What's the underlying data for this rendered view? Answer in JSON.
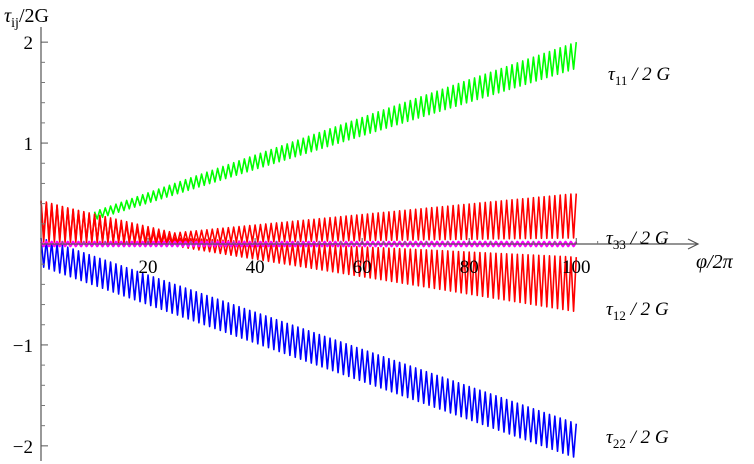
{
  "chart_data": {
    "type": "line",
    "title": "",
    "ylabel": "τ_ij/2G",
    "xlabel": "φ/2π",
    "xlim": [
      0,
      122
    ],
    "ylim": [
      -2.15,
      2.15
    ],
    "x_ticks": [
      20,
      40,
      60,
      80,
      100
    ],
    "y_ticks": [
      -2,
      -1,
      1,
      2
    ],
    "x_ticks_labels": [
      "20",
      "40",
      "60",
      "80",
      "100"
    ],
    "y_ticks_labels": [
      "−2",
      "−1",
      "1",
      "2"
    ],
    "grid": false,
    "legend": "none",
    "series": [
      {
        "name": "τ11 / 2 G",
        "color": "#00ff00",
        "x": [
          10,
          100
        ],
        "center": [
          0.28,
          1.87
        ],
        "oscillation_amplitude": [
          0.04,
          0.13
        ]
      },
      {
        "name": "τ33 / 2 G",
        "color": "#ff0000",
        "x": [
          0,
          25,
          100
        ],
        "center": [
          0.22,
          0.06,
          0.28
        ],
        "oscillation_amplitude": [
          0.2,
          0.05,
          0.22
        ]
      },
      {
        "name": "τ12 / 2 G",
        "color": "#ff0000",
        "x": [
          0,
          25,
          100
        ],
        "center": [
          0.25,
          0.02,
          -0.4
        ],
        "oscillation_amplitude": [
          0.18,
          0.04,
          0.27
        ]
      },
      {
        "name": "τ22 / 2 G",
        "color": "#0000ff",
        "x": [
          0,
          100
        ],
        "center": [
          -0.08,
          -1.95
        ],
        "oscillation_amplitude": [
          0.14,
          0.17
        ]
      },
      {
        "name": "",
        "color": "#ff00ff",
        "x": [
          0,
          100
        ],
        "center": [
          0.0,
          0.0
        ],
        "oscillation_amplitude": [
          0.02,
          0.02
        ]
      }
    ],
    "label_parts": {
      "ylabel_main": "τ",
      "ylabel_sub": "ij",
      "ylabel_rest": "/2G",
      "xlabel_text": "φ/2π",
      "s11_main": "τ",
      "s11_sub": "11",
      "s11_rest": " / 2 G",
      "s33_main": "τ",
      "s33_sub": "33",
      "s33_rest": " / 2 G",
      "s12_main": "τ",
      "s12_sub": "12",
      "s12_rest": " / 2 G",
      "s22_main": "τ",
      "s22_sub": "22",
      "s22_rest": " / 2 G"
    }
  }
}
